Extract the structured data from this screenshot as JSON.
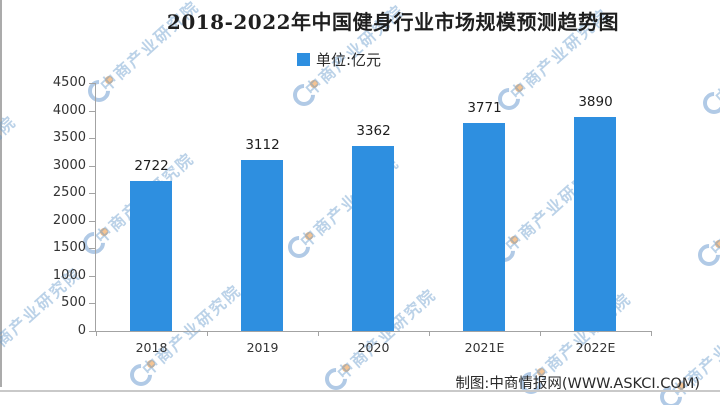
{
  "header": {
    "title": "2018-2022年中国健身行业市场规模预测趋势图"
  },
  "legend": {
    "label": "单位:亿元",
    "swatch_color": "#2e8fe0"
  },
  "chart_data": {
    "type": "bar",
    "title": "2018-2022年中国健身行业市场规模预测趋势图",
    "unit_label": "单位:亿元",
    "categories": [
      "2018",
      "2019",
      "2020",
      "2021E",
      "2022E"
    ],
    "values": [
      2722,
      3112,
      3362,
      3771,
      3890
    ],
    "bar_color": "#2e8fe0",
    "xlabel": "",
    "ylabel": "",
    "ylim": [
      0,
      4500
    ],
    "ytick_step": 500,
    "grid": false,
    "legend_position": "top-center",
    "value_labels_shown": true
  },
  "footer": {
    "attribution": "制图:中商情报网(WWW.ASKCI.COM)"
  },
  "watermark": {
    "text": "中商产业研究院"
  }
}
